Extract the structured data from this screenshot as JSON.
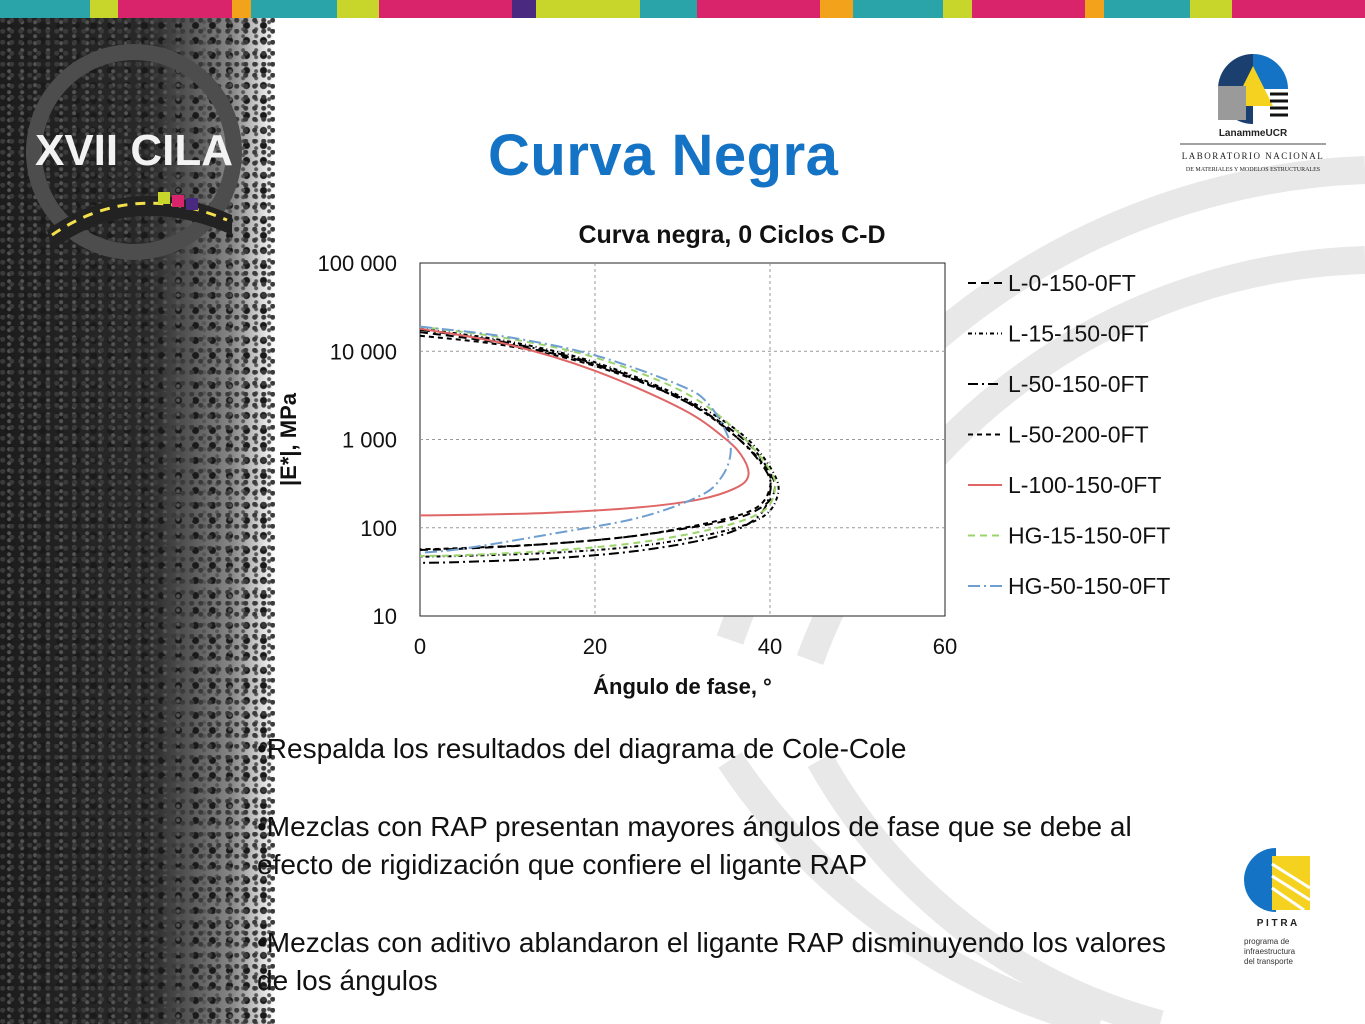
{
  "slide": {
    "title": "Curva Negra",
    "logos": {
      "cila_text": "XVII CILA",
      "lanamme_name": "LanammeUCR",
      "lanamme_line1": "LABORATORIO NACIONAL",
      "lanamme_line2": "DE MATERIALES Y MODELOS ESTRUCTURALES",
      "pitra_name": "P I T R A",
      "pitra_line1": "programa de",
      "pitra_line2": "infraestructura",
      "pitra_line3": "del transporte"
    },
    "top_bar_colors": [
      "#2aa4a8",
      "#c8d62b",
      "#d9246c",
      "#f2a21b",
      "#2aa4a8",
      "#c8d62b",
      "#d9246c",
      "#4a2a80",
      "#c8d62b",
      "#2aa4a8",
      "#d9246c",
      "#f2a21b"
    ],
    "bullets": [
      "•Respalda los resultados del diagrama de Cole-Cole",
      "•Mezclas con RAP presentan mayores ángulos de fase que se debe al efecto de rigidización que confiere el ligante RAP",
      "•Mezclas con aditivo ablandaron el ligante RAP disminuyendo los valores de los ángulos"
    ]
  },
  "colors": {
    "title": "#1473c4",
    "black_series": "#000000",
    "red_series": "#e06666",
    "green_series": "#9bd46a",
    "blue_series": "#6f9fd0"
  },
  "chart_data": {
    "type": "line",
    "title": "Curva negra, 0 Ciclos C-D",
    "xlabel": "Ángulo de fase, °",
    "ylabel": "|E*|, MPa",
    "xlim": [
      0,
      60
    ],
    "ylim": [
      10,
      100000
    ],
    "y_scale": "log",
    "x_ticks": [
      "0",
      "20",
      "40",
      "60"
    ],
    "y_ticks": [
      "10",
      "100",
      "1 000",
      "10 000",
      "100 000"
    ],
    "grid": true,
    "legend_position": "right",
    "series": [
      {
        "name": "L-0-150-0FT",
        "color": "#000000",
        "dash": "8,5",
        "x": [
          0,
          10,
          20,
          30,
          37,
          40,
          40.5,
          39,
          35,
          25,
          15,
          5,
          0
        ],
        "y": [
          16500,
          12000,
          7000,
          2800,
          1000,
          420,
          260,
          170,
          120,
          82,
          66,
          58,
          56
        ]
      },
      {
        "name": "L-15-150-0FT",
        "color": "#000000",
        "dash": "4,3,1,3",
        "x": [
          0,
          10,
          20,
          30,
          37,
          40.5,
          40.8,
          39,
          34,
          25,
          15,
          5,
          0
        ],
        "y": [
          18000,
          13000,
          7500,
          3000,
          1100,
          400,
          220,
          130,
          88,
          62,
          52,
          48,
          47
        ]
      },
      {
        "name": "L-50-150-0FT",
        "color": "#000000",
        "dash": "10,4,2,4",
        "x": [
          0,
          10,
          20,
          30,
          36,
          39.5,
          40,
          38.5,
          34,
          25,
          15,
          5,
          0
        ],
        "y": [
          17500,
          12500,
          7200,
          2900,
          1100,
          450,
          250,
          130,
          80,
          55,
          45,
          41,
          40
        ]
      },
      {
        "name": "L-50-200-0FT",
        "color": "#000000",
        "dash": "5,4",
        "x": [
          0,
          10,
          20,
          30,
          36,
          39.5,
          40,
          38.5,
          34,
          25,
          15,
          5,
          0
        ],
        "y": [
          15000,
          11500,
          6800,
          2800,
          1100,
          480,
          290,
          170,
          120,
          82,
          66,
          59,
          57
        ]
      },
      {
        "name": "L-100-150-0FT",
        "color": "#e06666",
        "dash": "",
        "x": [
          0,
          10,
          20,
          30,
          35,
          37,
          37.5,
          36,
          32,
          25,
          15,
          5,
          0
        ],
        "y": [
          18000,
          12000,
          6000,
          2200,
          1000,
          600,
          380,
          280,
          210,
          170,
          148,
          140,
          138
        ]
      },
      {
        "name": "HG-15-150-0FT",
        "color": "#9bd46a",
        "dash": "7,5",
        "x": [
          0,
          10,
          20,
          30,
          36,
          40,
          40.5,
          39,
          34,
          25,
          15,
          5,
          0
        ],
        "y": [
          19000,
          14000,
          8500,
          3500,
          1300,
          450,
          250,
          150,
          100,
          68,
          55,
          49,
          48
        ]
      },
      {
        "name": "HG-50-150-0FT",
        "color": "#6f9fd0",
        "dash": "12,4,2,4",
        "x": [
          0,
          10,
          20,
          30,
          33,
          35,
          35.5,
          34.5,
          32,
          25,
          15,
          5,
          0
        ],
        "y": [
          19000,
          14500,
          9000,
          4000,
          2500,
          1200,
          700,
          380,
          230,
          130,
          85,
          58,
          52
        ]
      }
    ]
  }
}
